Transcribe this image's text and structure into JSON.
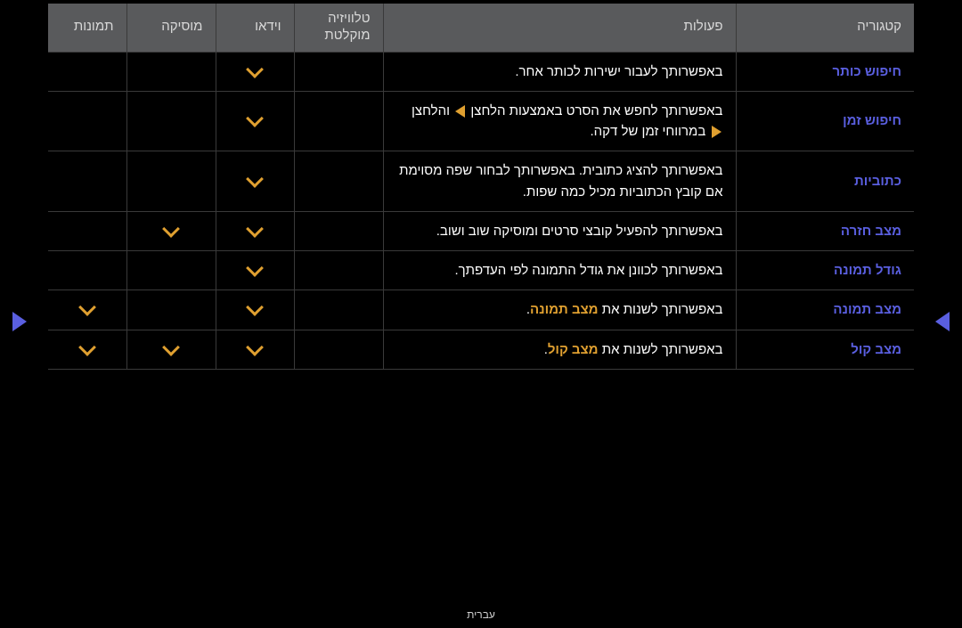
{
  "colors": {
    "background": "#000000",
    "header_bg": "#595a5c",
    "header_text": "#d9d9d9",
    "border": "#3a3a3a",
    "category": "#5a5fe0",
    "description": "#ffffff",
    "accent": "#e0a030",
    "nav_arrow": "#5a5fe0",
    "footer": "#cfcfcf"
  },
  "headers": {
    "category": "קטגוריה",
    "actions": "פעולות",
    "recorded_tv": "טלוויזיה מוקלטת",
    "video": "וידאו",
    "music": "מוסיקה",
    "photos": "תמונות"
  },
  "rows": [
    {
      "category": "חיפוש כותר",
      "desc_plain": "באפשרותך לעבור ישירות לכותר אחר.",
      "flags": {
        "recorded_tv": false,
        "video": true,
        "music": false,
        "photos": false
      }
    },
    {
      "category": "חיפוש זמן",
      "desc_html": "באפשרותך לחפש את הסרט באמצעות הלחצן <span class=\"inline-tri play-right\" data-name=\"play-forward-icon\" data-interactable=\"false\"></span> והלחצן <span class=\"inline-tri play-left\" data-name=\"play-back-icon\" data-interactable=\"false\"></span> במרווחי זמן של דקה.",
      "flags": {
        "recorded_tv": false,
        "video": true,
        "music": false,
        "photos": false
      }
    },
    {
      "category": "כתוביות",
      "desc_plain": "באפשרותך להציג כתובית. באפשרותך לבחור שפה מסוימת אם קובץ הכתוביות מכיל כמה שפות.",
      "flags": {
        "recorded_tv": false,
        "video": true,
        "music": false,
        "photos": false
      }
    },
    {
      "category": "מצב חזרה",
      "desc_plain": "באפשרותך להפעיל קובצי סרטים ומוסיקה שוב ושוב.",
      "flags": {
        "recorded_tv": false,
        "video": true,
        "music": true,
        "photos": false
      }
    },
    {
      "category": "גודל תמונה",
      "desc_plain": "באפשרותך לכוונן את גודל התמונה לפי העדפתך.",
      "flags": {
        "recorded_tv": false,
        "video": true,
        "music": false,
        "photos": false
      }
    },
    {
      "category": "מצב תמונה",
      "desc_html": "באפשרותך לשנות את <span class=\"em\">מצב תמונה</span>.",
      "flags": {
        "recorded_tv": false,
        "video": true,
        "music": false,
        "photos": true
      }
    },
    {
      "category": "מצב קול",
      "desc_html": "באפשרותך לשנות את <span class=\"em\">מצב קול</span>.",
      "flags": {
        "recorded_tv": false,
        "video": true,
        "music": true,
        "photos": true
      }
    }
  ],
  "footer": "עברית"
}
